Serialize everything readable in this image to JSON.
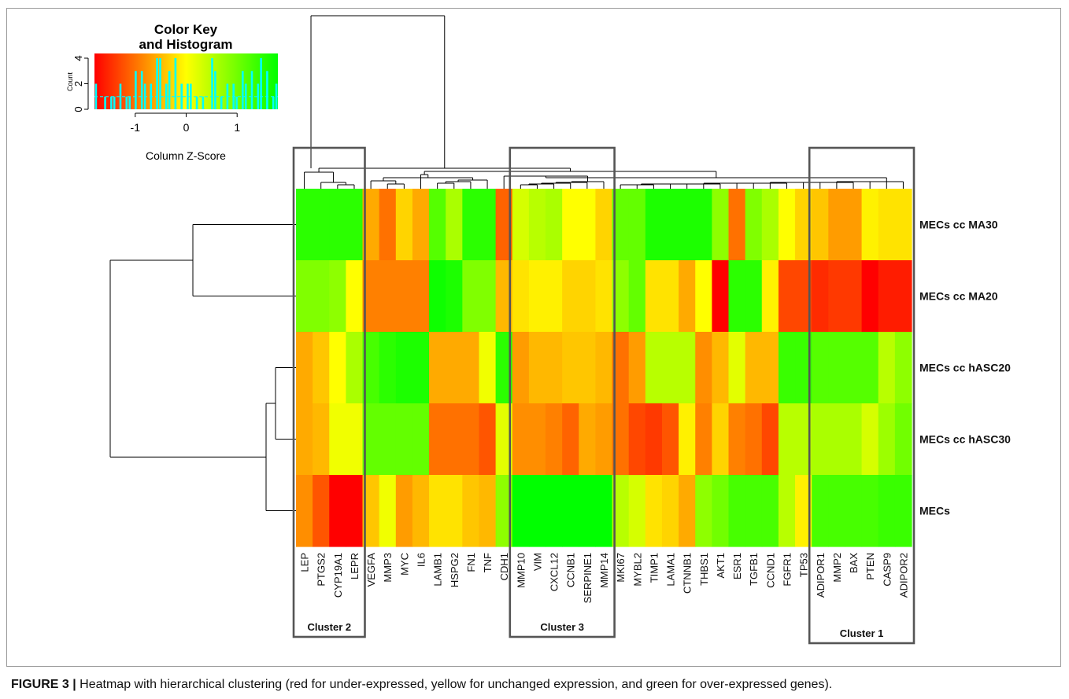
{
  "caption": {
    "label": "FIGURE 3 |",
    "text": " Heatmap with hierarchical clustering (red for under-expressed, yellow for unchanged expression, and green for over-expressed genes)."
  },
  "color_key": {
    "title_line1": "Color Key",
    "title_line2": "and Histogram",
    "xlabel": "Column Z-Score",
    "ylabel": "Count",
    "x_ticks": [
      "-1",
      "0",
      "1"
    ],
    "y_ticks": [
      "0",
      "2",
      "4"
    ],
    "range": [
      -1.8,
      1.8
    ],
    "colors": {
      "low": "#ff0000",
      "mid": "#ffff00",
      "high": "#00ff00",
      "histogram": "#00ffff"
    }
  },
  "clusters": [
    {
      "label": "Cluster 2",
      "first_gene": "LEP",
      "last_gene": "LEPR"
    },
    {
      "label": "Cluster 3",
      "first_gene": "MMP10",
      "last_gene": "MMP14"
    },
    {
      "label": "Cluster 1",
      "first_gene": "ADIPOR1",
      "last_gene": "ADIPOR2"
    }
  ],
  "chart_data": {
    "type": "heatmap",
    "value_scale": "Column Z-Score",
    "rows": [
      "MECs cc MA30",
      "MECs cc MA20",
      "MECs cc hASC20",
      "MECs cc hASC30",
      "MECs"
    ],
    "columns": [
      "LEP",
      "PTGS2",
      "CYP19A1",
      "LEPR",
      "VEGFA",
      "MMP3",
      "MYC",
      "IL6",
      "LAMB1",
      "HSPG2",
      "FN1",
      "TNF",
      "CDH1",
      "MMP10",
      "VIM",
      "CXCL12",
      "CCNB1",
      "SERPINE1",
      "MMP14",
      "MKI67",
      "MYBL2",
      "TIMP1",
      "LAMA1",
      "CTNNB1",
      "THBS1",
      "AKT1",
      "ESR1",
      "TGFB1",
      "CCND1",
      "FGFR1",
      "TP53",
      "ADIPOR1",
      "MMP2",
      "BAX",
      "PTEN",
      "CASP9",
      "ADIPOR2"
    ],
    "values": [
      [
        1.5,
        1.5,
        1.5,
        1.5,
        -0.6,
        -1.0,
        -0.3,
        -0.6,
        1.2,
        0.6,
        1.5,
        1.5,
        -1.1,
        0.3,
        0.5,
        0.6,
        0.0,
        0.0,
        -0.3,
        1.1,
        1.1,
        1.6,
        1.6,
        1.6,
        1.6,
        0.8,
        -1.0,
        0.9,
        0.6,
        0.0,
        -0.3,
        -0.4,
        -0.7,
        -0.7,
        -0.1,
        -0.2,
        -0.2
      ],
      [
        0.9,
        0.9,
        0.8,
        0.0,
        -0.9,
        -0.9,
        -0.9,
        -0.9,
        1.7,
        1.6,
        0.9,
        0.9,
        -0.5,
        -0.2,
        -0.1,
        -0.1,
        -0.3,
        -0.3,
        -0.2,
        0.8,
        1.1,
        -0.2,
        -0.2,
        -0.6,
        0.0,
        -1.8,
        1.5,
        1.5,
        -0.1,
        -1.3,
        -1.3,
        -1.5,
        -1.4,
        -1.4,
        -1.8,
        -1.6,
        -1.6
      ],
      [
        -0.6,
        -0.4,
        0.0,
        0.6,
        1.3,
        1.5,
        1.6,
        1.6,
        -0.6,
        -0.6,
        -0.6,
        0.1,
        1.5,
        -0.7,
        -0.5,
        -0.5,
        -0.4,
        -0.4,
        -0.5,
        -1.0,
        -0.7,
        0.5,
        0.5,
        0.5,
        -0.8,
        -0.5,
        0.2,
        -0.5,
        -0.5,
        1.4,
        1.4,
        1.2,
        1.2,
        1.2,
        1.2,
        0.5,
        0.8
      ],
      [
        -0.6,
        -0.5,
        0.1,
        0.1,
        1.1,
        1.1,
        1.1,
        1.1,
        -1.0,
        -1.0,
        -1.0,
        -1.2,
        0.2,
        -0.8,
        -0.8,
        -0.9,
        -1.1,
        -0.6,
        -0.7,
        -1.0,
        -1.3,
        -1.4,
        -1.2,
        -0.1,
        -0.9,
        -0.3,
        -0.9,
        -1.0,
        -1.3,
        0.5,
        0.5,
        0.6,
        0.6,
        0.6,
        0.3,
        0.7,
        1.0
      ],
      [
        -0.8,
        -1.2,
        -1.8,
        -1.8,
        -0.4,
        0.1,
        -0.7,
        -0.5,
        -0.2,
        -0.2,
        -0.4,
        -0.5,
        0.8,
        1.8,
        1.8,
        1.8,
        1.8,
        1.8,
        1.8,
        0.5,
        0.3,
        -0.2,
        -0.3,
        -0.6,
        0.8,
        1.0,
        1.3,
        1.3,
        1.3,
        0.5,
        -0.1,
        1.3,
        1.3,
        1.3,
        1.3,
        1.4,
        1.4
      ]
    ],
    "colorscale": {
      "min": -1.8,
      "mid": 0,
      "max": 1.8,
      "low_color": "#ff0000",
      "mid_color": "#ffff00",
      "high_color": "#00ff00"
    }
  }
}
